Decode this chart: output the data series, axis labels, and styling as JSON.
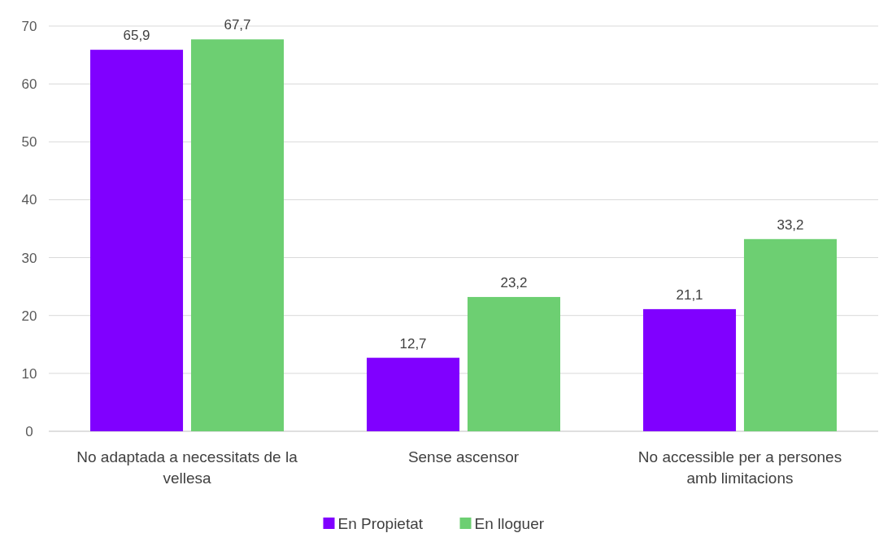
{
  "chart_data": {
    "type": "bar",
    "categories": [
      "No adaptada a necessitats de la vellesa",
      "Sense ascensor",
      "No accessible per a persones amb limitacions"
    ],
    "series": [
      {
        "name": "En Propietat",
        "color": "#8000ff",
        "values": [
          65.9,
          12.7,
          21.1
        ],
        "value_labels": [
          "65,9",
          "12,7",
          "21,1"
        ]
      },
      {
        "name": "En lloguer",
        "color": "#6dcf72",
        "values": [
          67.7,
          23.2,
          33.2
        ],
        "value_labels": [
          "67,7",
          "23,2",
          "33,2"
        ]
      }
    ],
    "ylim": [
      0,
      70
    ],
    "yticks": [
      0,
      10,
      20,
      30,
      40,
      50,
      60,
      70
    ],
    "grid": "y",
    "legend": "bottom"
  }
}
